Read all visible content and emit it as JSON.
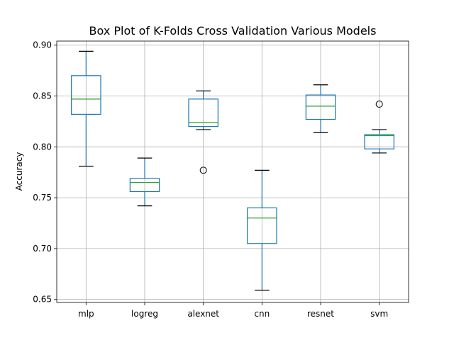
{
  "chart_data": {
    "type": "box",
    "title": "Box Plot of K-Folds Cross Validation Various Models",
    "xlabel": "",
    "ylabel": "Accuracy",
    "ylim": [
      0.647,
      0.904
    ],
    "yticks": [
      "0.65",
      "0.70",
      "0.75",
      "0.80",
      "0.85",
      "0.90"
    ],
    "ytick_values": [
      0.65,
      0.7,
      0.75,
      0.8,
      0.85,
      0.9
    ],
    "grid": true,
    "categories": [
      "mlp",
      "logreg",
      "alexnet",
      "cnn",
      "resnet",
      "svm"
    ],
    "boxes": [
      {
        "name": "mlp",
        "whisker_low": 0.781,
        "q1": 0.832,
        "median": 0.847,
        "q3": 0.87,
        "whisker_high": 0.894,
        "outliers": []
      },
      {
        "name": "logreg",
        "whisker_low": 0.742,
        "q1": 0.756,
        "median": 0.765,
        "q3": 0.769,
        "whisker_high": 0.789,
        "outliers": []
      },
      {
        "name": "alexnet",
        "whisker_low": 0.817,
        "q1": 0.82,
        "median": 0.824,
        "q3": 0.847,
        "whisker_high": 0.855,
        "outliers": [
          0.777
        ]
      },
      {
        "name": "cnn",
        "whisker_low": 0.659,
        "q1": 0.705,
        "median": 0.73,
        "q3": 0.74,
        "whisker_high": 0.777,
        "outliers": []
      },
      {
        "name": "resnet",
        "whisker_low": 0.814,
        "q1": 0.827,
        "median": 0.84,
        "q3": 0.851,
        "whisker_high": 0.861,
        "outliers": []
      },
      {
        "name": "svm",
        "whisker_low": 0.794,
        "q1": 0.798,
        "median": 0.811,
        "q3": 0.812,
        "whisker_high": 0.817,
        "outliers": [
          0.842
        ]
      }
    ],
    "colors": {
      "box": "#1f77b4",
      "median": "#2ca02c",
      "whisker": "#1f77b4",
      "cap": "#000000",
      "grid": "#b0b0b0",
      "axes": "#000000"
    }
  }
}
